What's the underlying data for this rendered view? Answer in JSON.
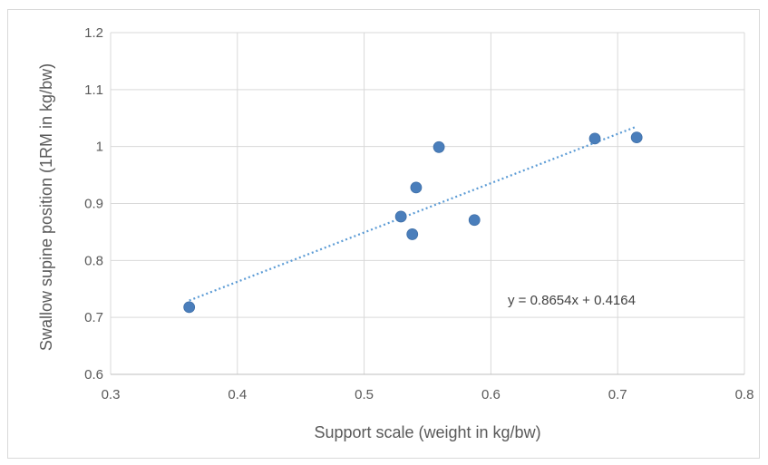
{
  "chart_data": {
    "type": "scatter",
    "title": "",
    "xlabel": "Support scale (weight in kg/bw)",
    "ylabel": "Swallow supine position (1RM in kg/bw)",
    "xlim": [
      0.3,
      0.8
    ],
    "ylim": [
      0.6,
      1.2
    ],
    "x_ticks": [
      0.3,
      0.4,
      0.5,
      0.6,
      0.7,
      0.8
    ],
    "y_ticks": [
      0.6,
      0.7,
      0.8,
      0.9,
      1.0,
      1.1,
      1.2
    ],
    "x_tick_labels": [
      "0.3",
      "0.4",
      "0.5",
      "0.6",
      "0.7",
      "0.8"
    ],
    "y_tick_labels": [
      "0.6",
      "0.7",
      "0.8",
      "0.9",
      "1",
      "1.1",
      "1.2"
    ],
    "grid": true,
    "legend": "none",
    "points": [
      {
        "x": 0.362,
        "y": 0.718
      },
      {
        "x": 0.529,
        "y": 0.877
      },
      {
        "x": 0.538,
        "y": 0.846
      },
      {
        "x": 0.541,
        "y": 0.928
      },
      {
        "x": 0.559,
        "y": 0.999
      },
      {
        "x": 0.587,
        "y": 0.871
      },
      {
        "x": 0.682,
        "y": 1.014
      },
      {
        "x": 0.715,
        "y": 1.016
      }
    ],
    "trendline": {
      "type": "linear",
      "slope": 0.8654,
      "intercept": 0.4164,
      "x_range": [
        0.362,
        0.715
      ],
      "style": "dotted",
      "equation_label": "y = 0.8654x + 0.4164"
    },
    "colors": {
      "marker": "#4a7ebb",
      "trendline": "#5b9bd5",
      "grid": "#d9d9d9",
      "text": "#595959"
    }
  }
}
